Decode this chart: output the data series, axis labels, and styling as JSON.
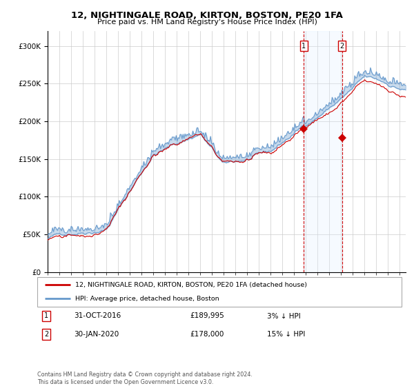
{
  "title1": "12, NIGHTINGALE ROAD, KIRTON, BOSTON, PE20 1FA",
  "title2": "Price paid vs. HM Land Registry's House Price Index (HPI)",
  "red_label": "12, NIGHTINGALE ROAD, KIRTON, BOSTON, PE20 1FA (detached house)",
  "blue_label": "HPI: Average price, detached house, Boston",
  "annotation1_date": "31-OCT-2016",
  "annotation1_price": "£189,995",
  "annotation1_hpi": "3% ↓ HPI",
  "annotation2_date": "30-JAN-2020",
  "annotation2_price": "£178,000",
  "annotation2_hpi": "15% ↓ HPI",
  "event1_year": 2016.83,
  "event1_value": 189995,
  "event2_year": 2020.08,
  "event2_value": 178000,
  "footer": "Contains HM Land Registry data © Crown copyright and database right 2024.\nThis data is licensed under the Open Government Licence v3.0.",
  "ylim": [
    0,
    320000
  ],
  "xlim_start": 1995,
  "xlim_end": 2025.5,
  "red_color": "#cc0000",
  "blue_color": "#6699cc",
  "shade_color": "#ddeeff",
  "grid_color": "#cccccc",
  "background_color": "#ffffff"
}
